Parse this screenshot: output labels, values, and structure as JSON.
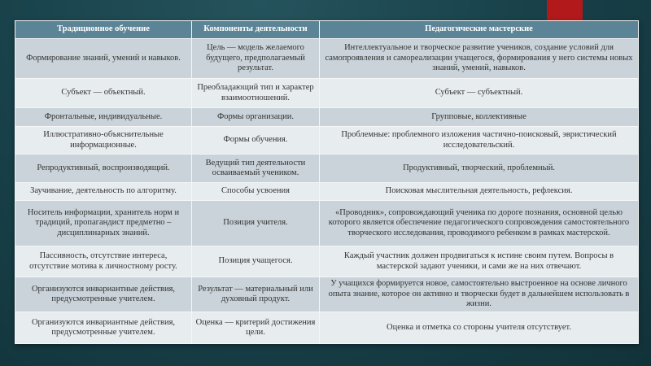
{
  "colors": {
    "header": "#5b8597",
    "accent": "#b2191b",
    "row_dark": "#c9d3d9",
    "row_light": "#e7ecef"
  },
  "table": {
    "headers": [
      "Традиционное обучение",
      "Компоненты деятельности",
      "Педагогические мастерские"
    ],
    "rows": [
      [
        "Формирование знаний, умений и навыков.",
        "Цель — модель желаемого будущего, предполагаемый результат.",
        "Интеллектуальное и творческое развитие учеников, создание условий для самопроявления и самореализации учащегося, формирования у него системы новых знаний, умений, навыков."
      ],
      [
        "Субъект — объектный.",
        "Преобладающий тип и характер взаимоотношений.",
        "Субъект — субъектный."
      ],
      [
        "Фронтальные, индивидуальные.",
        "Формы организации.",
        "Групповые, коллективные"
      ],
      [
        "Иллюстративно-объяснительные информационные.",
        "Формы обучения.",
        "Проблемные: проблемного изложения частично-поисковый, эвристический исследовательский."
      ],
      [
        "Репродуктивный, воспроизводящий.",
        "Ведущий тип деятельности осваиваемый учеником.",
        "Продуктивный, творческий, проблемный."
      ],
      [
        "Заучивание, деятельность по алгоритму.",
        "Способы усвоения",
        "Поисковая мыслительная деятельность, рефлексия."
      ],
      [
        "Носитель информации, хранитель норм и традиций, пропагандист предметно – дисциплинарных знаний.",
        "Позиция учителя.",
        "«Проводник», сопровождающий ученика по дороге познания, основной целью которого является обеспечение педагогического сопровождения самостоятельного творческого исследования, проводимого ребенком в рамках мастерской."
      ],
      [
        "Пассивность, отсутствие интереса, отсутствие мотива к личностному росту.",
        "Позиция учащегося.",
        "Каждый участник должен продвигаться к истине своим путем. Вопросы в мастерской задают ученики, и сами же на них отвечают."
      ],
      [
        "Организуются инвариантные действия, предусмотренные учителем.",
        "Результат — материальный или духовный продукт.",
        "У учащихся формируется новое, самостоятельно выстроенное на основе личного опыта знание, которое он активно и творчески будет в дальнейшем использовать в жизни."
      ],
      [
        "Организуются инвариантные действия, предусмотренные учителем.",
        "Оценка — критерий достижения цели.",
        "Оценка и отметка со стороны учителя отсутствует."
      ]
    ]
  }
}
